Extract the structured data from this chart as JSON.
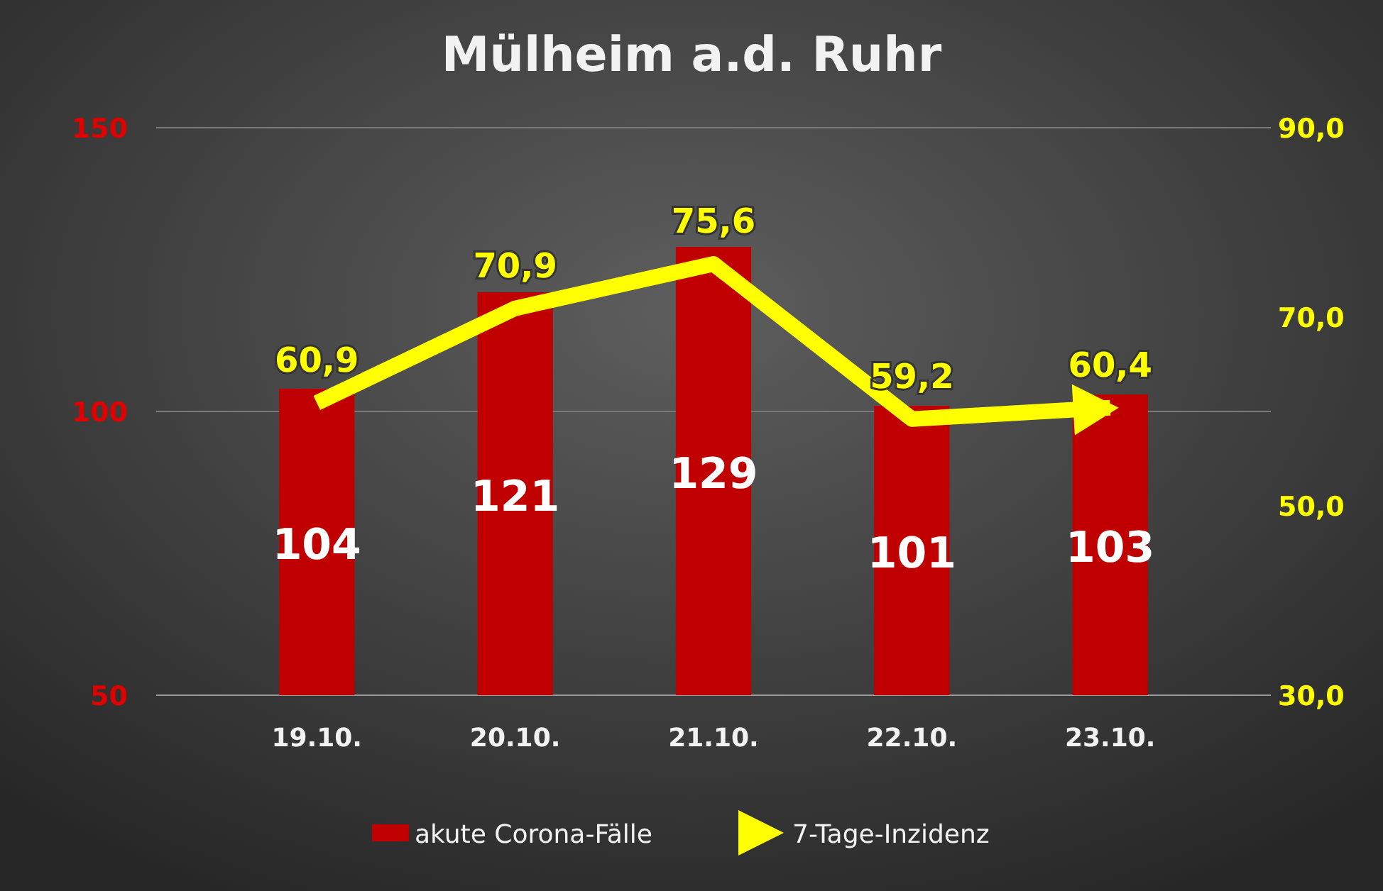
{
  "chart_data": {
    "type": "bar",
    "title": "Mülheim a.d. Ruhr",
    "categories": [
      "19.10.",
      "20.10.",
      "21.10.",
      "22.10.",
      "23.10."
    ],
    "series": [
      {
        "name": "akute Corona-Fälle",
        "color": "#c00000",
        "values": [
          104,
          121,
          129,
          101,
          103
        ],
        "value_labels": [
          "104",
          "121",
          "129",
          "101",
          "103"
        ]
      },
      {
        "name": "7-Tage-Inzidenz",
        "type": "line",
        "axis": "y2",
        "color": "#ffff00",
        "values": [
          60.9,
          70.9,
          75.6,
          59.2,
          60.4
        ],
        "value_labels": [
          "60,9",
          "70,9",
          "75,6",
          "59,2",
          "60,4"
        ]
      }
    ],
    "ylim": [
      50,
      150
    ],
    "yticks": [
      50,
      100,
      150
    ],
    "y2lim": [
      30,
      90
    ],
    "y2ticks": [
      {
        "value": 30,
        "label": "30,0"
      },
      {
        "value": 50,
        "label": "50,0"
      },
      {
        "value": 70,
        "label": "70,0"
      },
      {
        "value": 90,
        "label": "90,0"
      }
    ],
    "grid": "y",
    "legend": "bottom",
    "marker": "none",
    "line_style": "solid"
  }
}
